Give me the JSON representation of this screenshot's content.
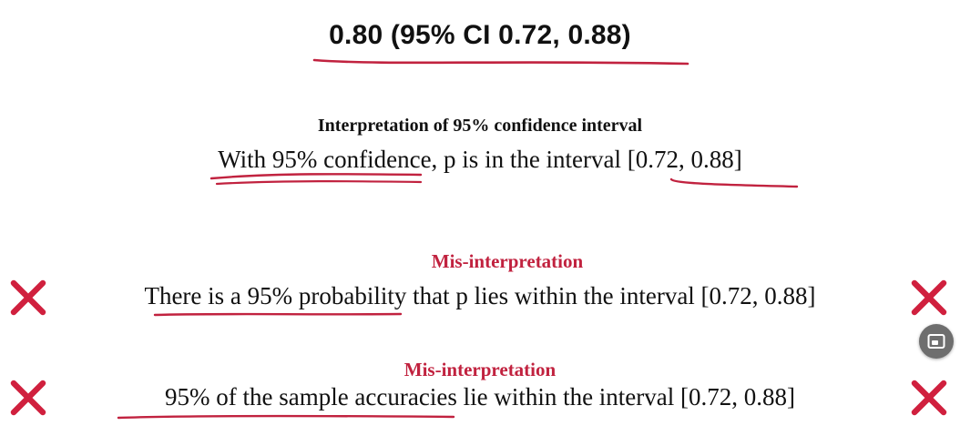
{
  "headline": "0.80 (95% CI 0.72, 0.88)",
  "interpretation": {
    "title": "Interpretation of 95% confidence interval",
    "sentence": "With 95% confidence, p is in the interval [0.72, 0.88]"
  },
  "misinterpretations": [
    {
      "label": "Mis-interpretation",
      "sentence": "There is a 95% probability that p lies within the interval [0.72, 0.88]"
    },
    {
      "label": "Mis-interpretation",
      "sentence": "95% of the sample accuracies lie within the interval [0.72, 0.88]"
    }
  ],
  "colors": {
    "accent_red": "#c1223f",
    "cross_red": "#d0203e",
    "fab_gray": "#6e6e6e"
  },
  "icons": {
    "cross": "cross-icon",
    "floating_button": "picture-in-picture-icon"
  }
}
